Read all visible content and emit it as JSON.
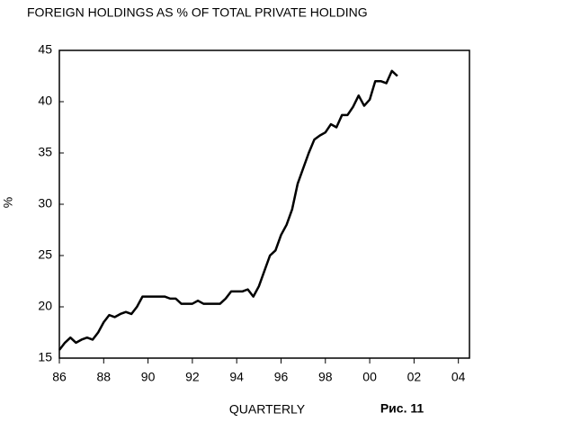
{
  "chart_data": {
    "type": "line",
    "title": "FOREIGN HOLDINGS AS % OF TOTAL PRIVATE HOLDING",
    "x_label": "QUARTERLY",
    "y_label": "%",
    "annotation": "Рис. 11",
    "x": [
      1986,
      1986.25,
      1986.5,
      1986.75,
      1987,
      1987.25,
      1987.5,
      1987.75,
      1988,
      1988.25,
      1988.5,
      1988.75,
      1989,
      1989.25,
      1989.5,
      1989.75,
      1990,
      1990.25,
      1990.5,
      1990.75,
      1991,
      1991.25,
      1991.5,
      1991.75,
      1992,
      1992.25,
      1992.5,
      1992.75,
      1993,
      1993.25,
      1993.5,
      1993.75,
      1994,
      1994.25,
      1994.5,
      1994.75,
      1995,
      1995.25,
      1995.5,
      1995.75,
      1996,
      1996.25,
      1996.5,
      1996.75,
      1997,
      1997.25,
      1997.5,
      1997.75,
      1998,
      1998.25,
      1998.5,
      1998.75,
      1999,
      1999.25,
      1999.5,
      1999.75,
      2000,
      2000.25,
      2000.5,
      2000.75,
      2001,
      2001.25
    ],
    "series": [
      {
        "color": "#000000",
        "values": [
          15.8,
          16.5,
          17.0,
          16.5,
          16.8,
          17.0,
          16.8,
          17.5,
          18.5,
          19.2,
          19.0,
          19.3,
          19.5,
          19.3,
          20.0,
          21.0,
          21.0,
          21.0,
          21.0,
          21.0,
          20.8,
          20.8,
          20.3,
          20.3,
          20.3,
          20.6,
          20.3,
          20.3,
          20.3,
          20.3,
          20.8,
          21.5,
          21.5,
          21.5,
          21.7,
          21.0,
          22.0,
          23.5,
          25.0,
          25.5,
          27.0,
          28.0,
          29.5,
          32.0,
          33.5,
          35.0,
          36.3,
          36.7,
          37.0,
          37.8,
          37.5,
          38.7,
          38.7,
          39.5,
          40.6,
          39.6,
          40.2,
          42.0,
          42.0,
          41.8,
          43.0,
          42.5
        ]
      }
    ],
    "xlim": [
      1986,
      2004.5
    ],
    "ylim": [
      15,
      45
    ],
    "xticks": [
      {
        "value": 1986,
        "label": "86"
      },
      {
        "value": 1988,
        "label": "88"
      },
      {
        "value": 1990,
        "label": "90"
      },
      {
        "value": 1992,
        "label": "92"
      },
      {
        "value": 1994,
        "label": "94"
      },
      {
        "value": 1996,
        "label": "96"
      },
      {
        "value": 1998,
        "label": "98"
      },
      {
        "value": 2000,
        "label": "00"
      },
      {
        "value": 2002,
        "label": "02"
      },
      {
        "value": 2004,
        "label": "04"
      }
    ],
    "yticks": [
      15,
      20,
      25,
      30,
      35,
      40,
      45
    ]
  }
}
